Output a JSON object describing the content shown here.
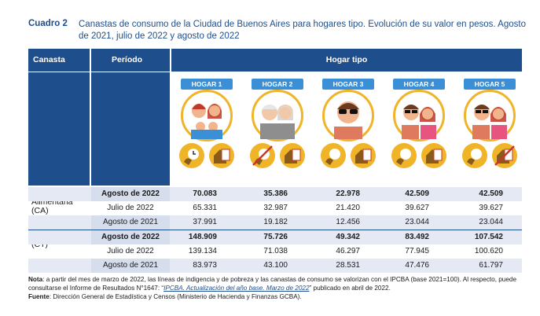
{
  "caption": {
    "label": "Cuadro 2",
    "title": "Canastas de consumo de la Ciudad de Buenos Aires para hogares tipo. Evolución de su valor en pesos. Agosto de 2021, julio de 2022 y agosto de 2022"
  },
  "header": {
    "canasta": "Canasta",
    "periodo": "Período",
    "hogar_tipo": "Hogar tipo"
  },
  "hogares": [
    {
      "label": "HOGAR 1"
    },
    {
      "label": "HOGAR 2"
    },
    {
      "label": "HOGAR 3"
    },
    {
      "label": "HOGAR 4"
    },
    {
      "label": "HOGAR 5"
    }
  ],
  "sections": {
    "ca_label": "Canasta Alimentaria (CA)",
    "ct_label": "Canasta Total (CT)"
  },
  "rows": [
    {
      "periodo": "Agosto de 2022",
      "values": [
        "70.083",
        "35.386",
        "22.978",
        "42.509",
        "42.509"
      ]
    },
    {
      "periodo": "Julio de 2022",
      "values": [
        "65.331",
        "32.987",
        "21.420",
        "39.627",
        "39.627"
      ]
    },
    {
      "periodo": "Agosto de 2021",
      "values": [
        "37.991",
        "19.182",
        "12.456",
        "23.044",
        "23.044"
      ]
    },
    {
      "periodo": "Agosto de 2022",
      "values": [
        "148.909",
        "75.726",
        "49.342",
        "83.492",
        "107.542"
      ]
    },
    {
      "periodo": "Julio de 2022",
      "values": [
        "139.134",
        "71.038",
        "46.297",
        "77.945",
        "100.620"
      ]
    },
    {
      "periodo": "Agosto de 2021",
      "values": [
        "83.973",
        "43.100",
        "28.531",
        "47.476",
        "61.797"
      ]
    }
  ],
  "notes": {
    "nota_label": "Nota",
    "nota_text_1": ": a partir del mes de marzo de 2022, las líneas de indigencia y de pobreza y las canastas de consumo se valorizan con el IPCBA (base 2021=100). Al respecto, puede consultarse el Informe de Resultados N°1647: “",
    "nota_link": "IPCBA. Actualización del año base. Marzo de 2022",
    "nota_text_2": "” publicado en abril de 2022.",
    "fuente_label": "Fuente",
    "fuente_text": ": Dirección General de Estadística y Censos (Ministerio de Hacienda y Finanzas GCBA)."
  },
  "colors": {
    "header_blue": "#1f4e8c",
    "tag_blue": "#3a8fd6",
    "accent_yellow": "#f0b429",
    "row_shade": "#e4e9f3"
  },
  "icons": [
    "family-face-icon",
    "elderly-couple-icon",
    "man-sunglasses-icon",
    "couple-icon",
    "couple-sunglasses-icon",
    "clock-icon",
    "house-document-icon"
  ]
}
